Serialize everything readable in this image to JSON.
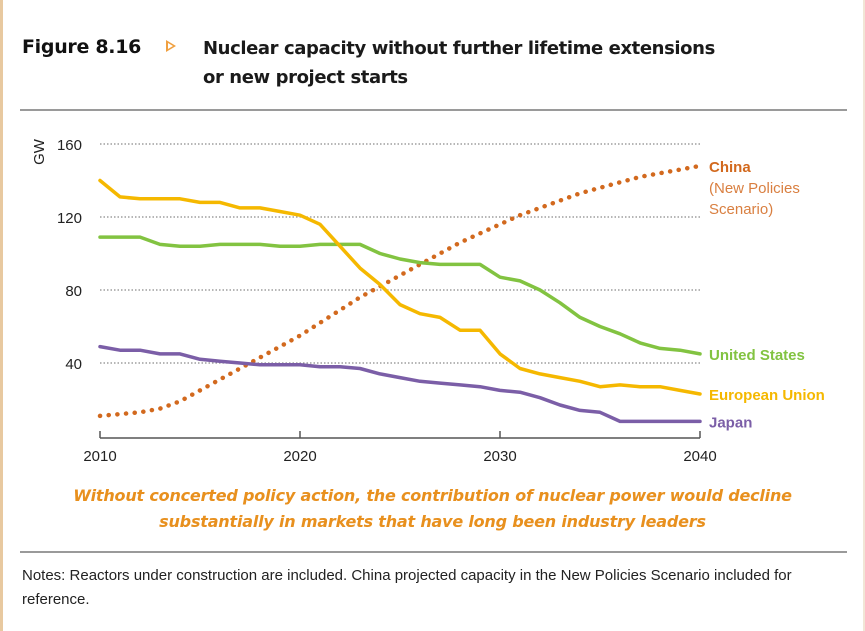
{
  "figure": {
    "label": "Figure 8.16",
    "title_line1": "Nuclear capacity without further lifetime extensions",
    "title_line2": "or new project starts"
  },
  "caption_line1": "Without concerted policy action, the contribution of nuclear power would decline",
  "caption_line2": "substantially in markets that have long been industry leaders",
  "notes": "Notes: Reactors under construction are included. China projected capacity in the New Policies Scenario included for reference.",
  "chart_data": {
    "type": "line",
    "title": "Nuclear capacity without further lifetime extensions or new project starts",
    "xlabel": "",
    "ylabel": "GW",
    "xlim": [
      2010,
      2040
    ],
    "ylim": [
      0,
      160
    ],
    "x_ticks": [
      2010,
      2020,
      2030,
      2040
    ],
    "y_ticks": [
      40,
      80,
      120,
      160
    ],
    "grid": "horizontal-dotted",
    "legend": "inline-right",
    "x": [
      2010,
      2011,
      2012,
      2013,
      2014,
      2015,
      2016,
      2017,
      2018,
      2019,
      2020,
      2021,
      2022,
      2023,
      2024,
      2025,
      2026,
      2027,
      2028,
      2029,
      2030,
      2031,
      2032,
      2033,
      2034,
      2035,
      2036,
      2037,
      2038,
      2039,
      2040
    ],
    "series": [
      {
        "name": "China",
        "label_lines": [
          "China",
          "(New Policies",
          "Scenario)"
        ],
        "style": "dotted",
        "color": "#d2691e",
        "values": [
          11,
          12,
          13,
          15,
          19,
          25,
          31,
          37,
          43,
          49,
          55,
          62,
          69,
          76,
          82,
          88,
          94,
          100,
          106,
          111,
          116,
          121,
          125,
          129,
          133,
          136,
          139,
          142,
          144,
          146,
          148
        ]
      },
      {
        "name": "United States",
        "label_lines": [
          "United States"
        ],
        "style": "solid",
        "color": "#82c341",
        "values": [
          109,
          109,
          109,
          105,
          104,
          104,
          105,
          105,
          105,
          104,
          104,
          105,
          105,
          105,
          100,
          97,
          95,
          94,
          94,
          94,
          87,
          85,
          80,
          73,
          65,
          60,
          56,
          51,
          48,
          47,
          45
        ]
      },
      {
        "name": "European Union",
        "label_lines": [
          "European Union"
        ],
        "style": "solid",
        "color": "#f5b800",
        "values": [
          140,
          131,
          130,
          130,
          130,
          128,
          128,
          125,
          125,
          123,
          121,
          116,
          104,
          92,
          83,
          72,
          67,
          65,
          58,
          58,
          45,
          37,
          34,
          32,
          30,
          27,
          28,
          27,
          27,
          25,
          23
        ]
      },
      {
        "name": "Japan",
        "label_lines": [
          "Japan"
        ],
        "style": "solid",
        "color": "#7b5ea7",
        "values": [
          49,
          47,
          47,
          45,
          45,
          42,
          41,
          40,
          39,
          39,
          39,
          38,
          38,
          37,
          34,
          32,
          30,
          29,
          28,
          27,
          25,
          24,
          21,
          17,
          14,
          13,
          8,
          8,
          8,
          8,
          8
        ]
      }
    ]
  }
}
